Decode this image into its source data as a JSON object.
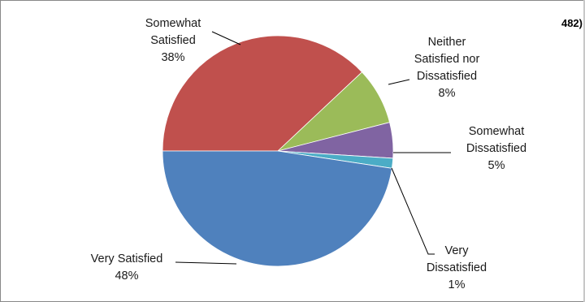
{
  "corner_text": "482)",
  "colors": {
    "very_satisfied": "#4f81bd",
    "somewhat_satisfied": "#c0504d",
    "neither": "#9bbb59",
    "somewhat_dissatisfied": "#8064a2",
    "very_dissatisfied": "#4bacc6"
  },
  "chart_data": {
    "type": "pie",
    "title": "",
    "legend": "none",
    "start_angle_deg": 180,
    "direction": "clockwise",
    "slices": [
      {
        "key": "somewhat_satisfied",
        "label_lines": [
          "Somewhat",
          "Satisfied"
        ],
        "pct_label": "38%",
        "value": 38.0,
        "color": "#c0504d"
      },
      {
        "key": "neither",
        "label_lines": [
          "Neither",
          "Satisfied nor",
          "Dissatisfied"
        ],
        "pct_label": "8%",
        "value": 8.0,
        "color": "#9bbb59"
      },
      {
        "key": "somewhat_dissatisfied",
        "label_lines": [
          "Somewhat",
          "Dissatisfied"
        ],
        "pct_label": "5%",
        "value": 5.0,
        "color": "#8064a2"
      },
      {
        "key": "very_dissatisfied",
        "label_lines": [
          "Very",
          "Dissatisfied"
        ],
        "pct_label": "1%",
        "value": 1.4,
        "color": "#4bacc6"
      },
      {
        "key": "very_satisfied",
        "label_lines": [
          "Very Satisfied"
        ],
        "pct_label": "48%",
        "value": 47.6,
        "color": "#4f81bd"
      }
    ]
  }
}
